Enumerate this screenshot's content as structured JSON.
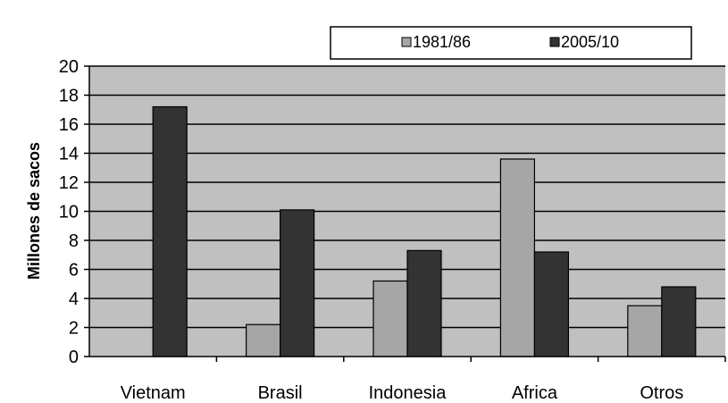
{
  "chart_data": {
    "type": "bar",
    "categories": [
      "Vietnam",
      "Brasil",
      "Indonesia",
      "Africa",
      "Otros"
    ],
    "series": [
      {
        "name": "1981/86",
        "color": "#a6a6a6",
        "values": [
          0,
          2.2,
          5.2,
          13.6,
          3.5
        ]
      },
      {
        "name": "2005/10",
        "color": "#333333",
        "values": [
          17.2,
          10.1,
          7.3,
          7.2,
          4.8
        ]
      }
    ],
    "ylabel": "Millones de sacos",
    "xlabel": "",
    "ylim": [
      0,
      20
    ],
    "yticks": [
      0,
      2,
      4,
      6,
      8,
      10,
      12,
      14,
      16,
      18,
      20
    ],
    "grid": true,
    "plot_background": "#c0c0c0",
    "legend_position": "top-right"
  }
}
